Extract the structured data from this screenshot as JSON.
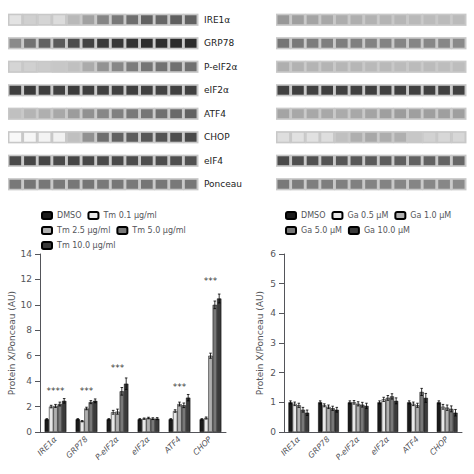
{
  "chart_data": [
    {
      "type": "heatmap",
      "rows": [
        "IRE1α",
        "GRP78",
        "P-eIF2α",
        "eIF2α",
        "ATF4",
        "CHOP",
        "eIF4",
        "Ponceau"
      ],
      "cells": [
        [
          0.12,
          0.2,
          0.18,
          0.15,
          0.3,
          0.4,
          0.52,
          0.57,
          0.62,
          0.67,
          0.65,
          0.68,
          0.67
        ],
        [
          0.5,
          0.6,
          0.67,
          0.7,
          0.76,
          0.8,
          0.84,
          0.85,
          0.87,
          0.89,
          0.89,
          0.9,
          0.9
        ],
        [
          0.18,
          0.2,
          0.22,
          0.24,
          0.27,
          0.36,
          0.46,
          0.51,
          0.56,
          0.59,
          0.6,
          0.61,
          0.61
        ],
        [
          0.82,
          0.84,
          0.82,
          0.81,
          0.83,
          0.82,
          0.81,
          0.81,
          0.82,
          0.81,
          0.8,
          0.81,
          0.81
        ],
        [
          0.27,
          0.32,
          0.34,
          0.37,
          0.42,
          0.47,
          0.51,
          0.54,
          0.57,
          0.59,
          0.61,
          0.64,
          0.67
        ],
        [
          0.03,
          0.04,
          0.05,
          0.06,
          0.27,
          0.47,
          0.62,
          0.67,
          0.69,
          0.71,
          0.73,
          0.75,
          0.77
        ],
        [
          0.77,
          0.79,
          0.79,
          0.77,
          0.79,
          0.78,
          0.77,
          0.77,
          0.76,
          0.75,
          0.76,
          0.75,
          0.74
        ],
        [
          0.57,
          0.59,
          0.58,
          0.57,
          0.58,
          0.59,
          0.57,
          0.58,
          0.57,
          0.59,
          0.58,
          0.57,
          0.58
        ]
      ],
      "tick_labels": "y"
    },
    {
      "type": "heatmap",
      "rows": [
        "IRE1α",
        "GRP78",
        "P-eIF2α",
        "eIF2α",
        "ATF4",
        "CHOP",
        "eIF4",
        "Ponceau"
      ],
      "cells": [
        [
          0.44,
          0.41,
          0.39,
          0.37,
          0.35,
          0.34,
          0.33,
          0.32,
          0.31,
          0.3,
          0.29,
          0.29,
          0.29
        ],
        [
          0.59,
          0.57,
          0.56,
          0.55,
          0.55,
          0.54,
          0.53,
          0.53,
          0.52,
          0.52,
          0.51,
          0.51,
          0.5
        ],
        [
          0.34,
          0.33,
          0.32,
          0.32,
          0.31,
          0.31,
          0.3,
          0.3,
          0.29,
          0.29,
          0.29,
          0.28,
          0.28
        ],
        [
          0.81,
          0.82,
          0.81,
          0.82,
          0.81,
          0.81,
          0.82,
          0.81,
          0.82,
          0.81,
          0.81,
          0.81,
          0.81
        ],
        [
          0.39,
          0.37,
          0.37,
          0.37,
          0.36,
          0.37,
          0.39,
          0.41,
          0.42,
          0.41,
          0.41,
          0.41,
          0.41
        ],
        [
          0.14,
          0.13,
          0.13,
          0.14,
          0.27,
          0.34,
          0.37,
          0.35,
          0.34,
          0.24,
          0.19,
          0.17,
          0.17
        ],
        [
          0.77,
          0.75,
          0.74,
          0.73,
          0.72,
          0.71,
          0.7,
          0.69,
          0.68,
          0.67,
          0.67,
          0.66,
          0.65
        ],
        [
          0.57,
          0.56,
          0.55,
          0.55,
          0.54,
          0.54,
          0.53,
          0.53,
          0.52,
          0.52,
          0.51,
          0.51,
          0.5
        ]
      ],
      "tick_labels": false
    },
    {
      "type": "bar",
      "categories": [
        "IRE1α",
        "GRP78",
        "P-eIF2α",
        "eIF2α",
        "ATF4",
        "CHOP"
      ],
      "series": [
        {
          "name": "DMSO",
          "color": "#1a1a1a",
          "values": [
            1.0,
            1.0,
            1.0,
            1.0,
            1.0,
            1.0
          ],
          "errors": [
            0.05,
            0.05,
            0.05,
            0.05,
            0.05,
            0.05
          ]
        },
        {
          "name": "Tm 0.1 μg/ml",
          "color": "#e8e8e8",
          "values": [
            2.0,
            0.85,
            1.55,
            1.05,
            1.65,
            1.1
          ],
          "errors": [
            0.1,
            0.05,
            0.15,
            0.05,
            0.1,
            0.08
          ]
        },
        {
          "name": "Tm 2.5 μg/ml",
          "color": "#b0b0b0",
          "values": [
            2.05,
            1.85,
            1.6,
            1.1,
            2.2,
            6.0
          ],
          "errors": [
            0.12,
            0.1,
            0.2,
            0.06,
            0.15,
            0.2
          ]
        },
        {
          "name": "Tm 5.0 μg/ml",
          "color": "#787878",
          "values": [
            2.2,
            2.35,
            3.2,
            1.05,
            2.1,
            10.0
          ],
          "errors": [
            0.15,
            0.12,
            0.3,
            0.07,
            0.18,
            0.3
          ]
        },
        {
          "name": "Tm 10.0 μg/ml",
          "color": "#3a3a3a",
          "values": [
            2.45,
            2.45,
            3.8,
            1.05,
            2.7,
            10.5
          ],
          "errors": [
            0.18,
            0.15,
            0.45,
            0.08,
            0.25,
            0.35
          ]
        }
      ],
      "ylabel": "Protein X/Ponceau (AU)",
      "ylim": [
        0,
        14
      ],
      "yticks": [
        0,
        2,
        4,
        6,
        8,
        10,
        12,
        14
      ],
      "annotations": [
        {
          "category": "IRE1α",
          "text": "****",
          "y": 2.9
        },
        {
          "category": "GRP78",
          "text": "***",
          "y": 2.9
        },
        {
          "category": "P-eIF2α",
          "text": "***",
          "y": 4.7
        },
        {
          "category": "ATF4",
          "text": "***",
          "y": 3.2
        },
        {
          "category": "CHOP",
          "text": "***",
          "y": 11.5
        }
      ],
      "grid": false,
      "legend": "upper left"
    },
    {
      "type": "bar",
      "categories": [
        "IRE1α",
        "GRP78",
        "P-eIF2α",
        "eIF2α",
        "ATF4",
        "CHOP"
      ],
      "series": [
        {
          "name": "DMSO",
          "color": "#1a1a1a",
          "values": [
            1.0,
            1.0,
            1.0,
            1.0,
            1.0,
            1.0
          ],
          "errors": [
            0.05,
            0.05,
            0.05,
            0.05,
            0.05,
            0.05
          ]
        },
        {
          "name": "Ga 0.5 μM",
          "color": "#e8e8e8",
          "values": [
            0.95,
            0.9,
            1.0,
            1.1,
            0.95,
            0.85
          ],
          "errors": [
            0.06,
            0.05,
            0.06,
            0.07,
            0.06,
            0.08
          ]
        },
        {
          "name": "Ga 1.0 μM",
          "color": "#b0b0b0",
          "values": [
            0.9,
            0.85,
            0.95,
            1.15,
            0.9,
            0.82
          ],
          "errors": [
            0.07,
            0.06,
            0.07,
            0.08,
            0.07,
            0.09
          ]
        },
        {
          "name": "Ga 5.0 μM",
          "color": "#787878",
          "values": [
            0.75,
            0.8,
            0.92,
            1.2,
            1.35,
            0.78
          ],
          "errors": [
            0.08,
            0.07,
            0.08,
            0.09,
            0.12,
            0.1
          ]
        },
        {
          "name": "Ga 10.0 μM",
          "color": "#3a3a3a",
          "values": [
            0.65,
            0.75,
            0.88,
            1.05,
            1.15,
            0.65
          ],
          "errors": [
            0.09,
            0.08,
            0.09,
            0.1,
            0.15,
            0.11
          ]
        }
      ],
      "ylabel": "Protein X/Ponceau (AU)",
      "ylim": [
        0,
        6
      ],
      "yticks": [
        0,
        1,
        2,
        3,
        4,
        5,
        6
      ],
      "grid": false,
      "legend": "upper left"
    }
  ]
}
